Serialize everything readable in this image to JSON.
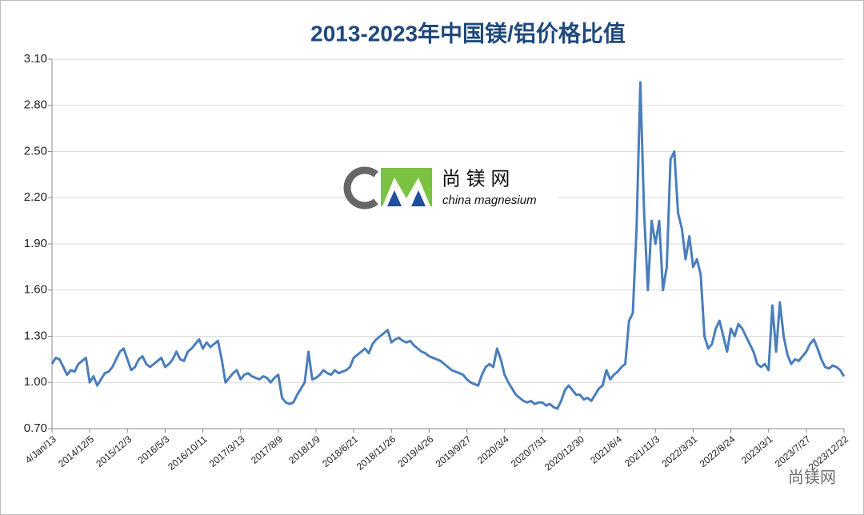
{
  "chart_data": {
    "type": "line",
    "title": "2013-2023年中国镁/铝价格比值",
    "watermark": {
      "logo_cn": "尚 镁 网",
      "logo_en": "china magnesium",
      "corner": "尚镁网"
    },
    "categories": [
      "4/Jan/13",
      null,
      null,
      null,
      null,
      null,
      null,
      null,
      null,
      null,
      "2014/12/5",
      null,
      null,
      null,
      null,
      null,
      null,
      null,
      null,
      null,
      "2015/12/3",
      null,
      null,
      null,
      null,
      null,
      null,
      null,
      null,
      null,
      "2016/5/3",
      null,
      null,
      null,
      null,
      null,
      null,
      null,
      null,
      null,
      "2016/10/11",
      null,
      null,
      null,
      null,
      null,
      null,
      null,
      null,
      null,
      "2017/3/13",
      null,
      null,
      null,
      null,
      null,
      null,
      null,
      null,
      null,
      "2017/8/9",
      null,
      null,
      null,
      null,
      null,
      null,
      null,
      null,
      null,
      "2018/1/9",
      null,
      null,
      null,
      null,
      null,
      null,
      null,
      null,
      null,
      "2018/6/21",
      null,
      null,
      null,
      null,
      null,
      null,
      null,
      null,
      null,
      "2018/11/26",
      null,
      null,
      null,
      null,
      null,
      null,
      null,
      null,
      null,
      "2019/4/26",
      null,
      null,
      null,
      null,
      null,
      null,
      null,
      null,
      null,
      "2019/9/27",
      null,
      null,
      null,
      null,
      null,
      null,
      null,
      null,
      null,
      "2020/3/4",
      null,
      null,
      null,
      null,
      null,
      null,
      null,
      null,
      null,
      "2020/7/31",
      null,
      null,
      null,
      null,
      null,
      null,
      null,
      null,
      null,
      "2020/12/30",
      null,
      null,
      null,
      null,
      null,
      null,
      null,
      null,
      null,
      "2021/6/4",
      null,
      null,
      null,
      null,
      null,
      null,
      null,
      null,
      null,
      "2021/11/3",
      null,
      null,
      null,
      null,
      null,
      null,
      null,
      null,
      null,
      "2022/3/31",
      null,
      null,
      null,
      null,
      null,
      null,
      null,
      null,
      null,
      "2022/8/24",
      null,
      null,
      null,
      null,
      null,
      null,
      null,
      null,
      null,
      "2023/3/1",
      null,
      null,
      null,
      null,
      null,
      null,
      null,
      null,
      null,
      "2023/7/27",
      null,
      null,
      null,
      null,
      null,
      null,
      null,
      null,
      null,
      "2023/12/22"
    ],
    "series": [
      {
        "color": "#4a7ebb",
        "values": [
          1.12,
          1.16,
          1.15,
          1.1,
          1.05,
          1.08,
          1.07,
          1.12,
          1.14,
          1.16,
          1.0,
          1.04,
          0.98,
          1.02,
          1.06,
          1.07,
          1.1,
          1.15,
          1.2,
          1.22,
          1.15,
          1.08,
          1.1,
          1.15,
          1.17,
          1.12,
          1.1,
          1.12,
          1.14,
          1.16,
          1.1,
          1.12,
          1.15,
          1.2,
          1.15,
          1.14,
          1.2,
          1.22,
          1.25,
          1.28,
          1.22,
          1.26,
          1.23,
          1.25,
          1.27,
          1.15,
          1.0,
          1.03,
          1.06,
          1.08,
          1.02,
          1.05,
          1.06,
          1.04,
          1.03,
          1.02,
          1.04,
          1.03,
          1.0,
          1.03,
          1.05,
          0.9,
          0.87,
          0.86,
          0.87,
          0.92,
          0.96,
          1.0,
          1.2,
          1.02,
          1.03,
          1.05,
          1.08,
          1.06,
          1.05,
          1.08,
          1.06,
          1.07,
          1.08,
          1.1,
          1.16,
          1.18,
          1.2,
          1.22,
          1.19,
          1.25,
          1.28,
          1.3,
          1.32,
          1.34,
          1.26,
          1.28,
          1.29,
          1.27,
          1.26,
          1.27,
          1.24,
          1.22,
          1.2,
          1.19,
          1.17,
          1.16,
          1.15,
          1.14,
          1.12,
          1.1,
          1.08,
          1.07,
          1.06,
          1.05,
          1.02,
          1.0,
          0.99,
          0.98,
          1.05,
          1.1,
          1.12,
          1.1,
          1.22,
          1.15,
          1.05,
          1.0,
          0.96,
          0.92,
          0.9,
          0.88,
          0.87,
          0.88,
          0.86,
          0.87,
          0.87,
          0.85,
          0.86,
          0.84,
          0.83,
          0.88,
          0.95,
          0.98,
          0.95,
          0.92,
          0.92,
          0.89,
          0.9,
          0.88,
          0.92,
          0.96,
          0.98,
          1.08,
          1.02,
          1.05,
          1.07,
          1.1,
          1.12,
          1.4,
          1.45,
          2.0,
          2.95,
          2.1,
          1.6,
          2.05,
          1.9,
          2.05,
          1.6,
          1.75,
          2.45,
          2.5,
          2.1,
          2.0,
          1.8,
          1.95,
          1.75,
          1.8,
          1.7,
          1.3,
          1.22,
          1.25,
          1.35,
          1.4,
          1.3,
          1.2,
          1.35,
          1.3,
          1.38,
          1.35,
          1.3,
          1.25,
          1.2,
          1.12,
          1.1,
          1.12,
          1.08,
          1.5,
          1.2,
          1.52,
          1.3,
          1.18,
          1.12,
          1.15,
          1.14,
          1.17,
          1.2,
          1.25,
          1.28,
          1.22,
          1.15,
          1.1,
          1.09,
          1.11,
          1.1,
          1.08,
          1.04
        ]
      }
    ],
    "ylim": [
      0.7,
      3.1
    ],
    "yticks": [
      {
        "value": 0.7,
        "label": "0.70"
      },
      {
        "value": 1.0,
        "label": "1.00"
      },
      {
        "value": 1.3,
        "label": "1.30"
      },
      {
        "value": 1.6,
        "label": "1.60"
      },
      {
        "value": 1.9,
        "label": "1.90"
      },
      {
        "value": 2.2,
        "label": "2.20"
      },
      {
        "value": 2.5,
        "label": "2.50"
      },
      {
        "value": 2.8,
        "label": "2.80"
      },
      {
        "value": 3.1,
        "label": "3.10"
      }
    ],
    "grid": true
  }
}
